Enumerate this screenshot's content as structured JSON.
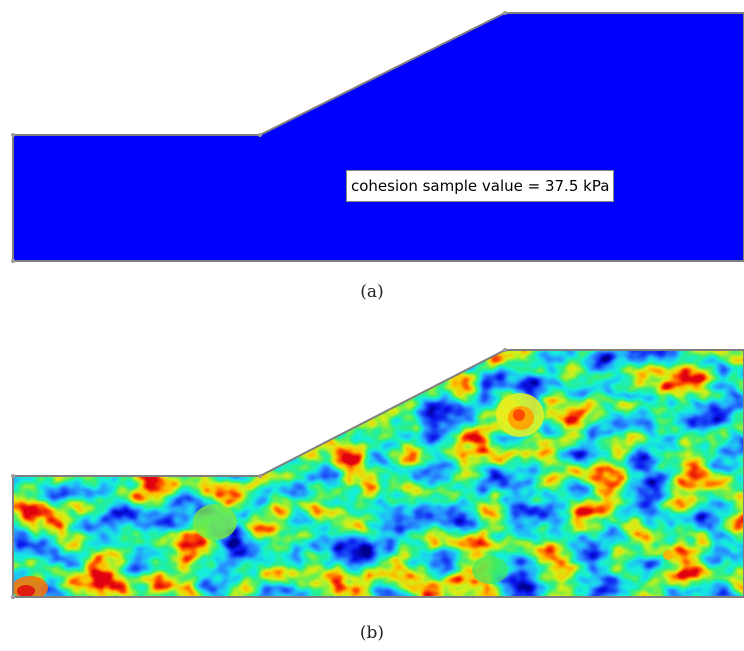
{
  "panel_a": {
    "annotation": "cohesion sample value = 37.5 kPa",
    "caption": "(a)",
    "fill_color": "#0000ff",
    "outline_color": "#7f7f7f"
  },
  "panel_b": {
    "caption": "(b)",
    "colormap": [
      "#000090",
      "#0a14ee",
      "#1a4cf6",
      "#2a8cff",
      "#1ec4f5",
      "#16f0d8",
      "#2af08c",
      "#78f048",
      "#d4f016",
      "#ffc000",
      "#ff5000",
      "#e00010"
    ],
    "outline_color": "#7f7f7f"
  }
}
